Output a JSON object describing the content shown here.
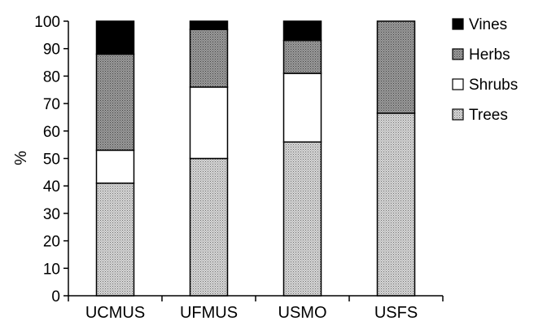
{
  "chart_data": {
    "type": "bar",
    "stacked": true,
    "percent_stacked": true,
    "title": "",
    "xlabel": "",
    "ylabel": "%",
    "ylim": [
      0,
      100
    ],
    "yticks": [
      0,
      10,
      20,
      30,
      40,
      50,
      60,
      70,
      80,
      90,
      100
    ],
    "grid": false,
    "legend_position": "top-right",
    "categories": [
      "UCMUS",
      "UFMUS",
      "USMO",
      "USFS"
    ],
    "series": [
      {
        "name": "Trees",
        "values": [
          41,
          50,
          56,
          66.5
        ]
      },
      {
        "name": "Shrubs",
        "values": [
          12,
          26,
          25,
          0
        ]
      },
      {
        "name": "Herbs",
        "values": [
          35,
          21,
          12,
          33.5
        ]
      },
      {
        "name": "Vines",
        "values": [
          12,
          3,
          7,
          0
        ]
      }
    ],
    "legend_order": [
      "Vines",
      "Herbs",
      "Shrubs",
      "Trees"
    ],
    "colors": {
      "Trees": "#c4c4c4",
      "Shrubs": "#ffffff",
      "Herbs": "#8c8c8c",
      "Vines": "#000000"
    }
  }
}
